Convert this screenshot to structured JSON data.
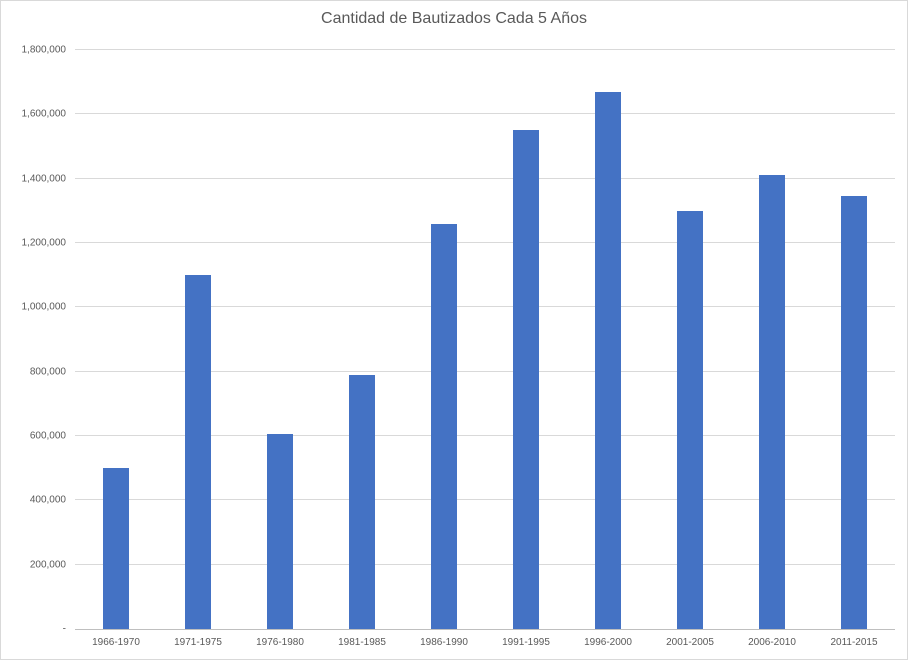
{
  "chart_data": {
    "type": "bar",
    "title": "Cantidad de Bautizados Cada 5 Años",
    "categories": [
      "1966-1970",
      "1971-1975",
      "1976-1980",
      "1981-1985",
      "1986-1990",
      "1991-1995",
      "1996-2000",
      "2001-2005",
      "2006-2010",
      "2011-2015"
    ],
    "values": [
      500000,
      1100000,
      605000,
      790000,
      1260000,
      1550000,
      1670000,
      1300000,
      1410000,
      1345000
    ],
    "xlabel": "",
    "ylabel": "",
    "ylim": [
      0,
      1800000
    ],
    "ytick_step": 200000,
    "ytick_labels": [
      "-",
      "200,000",
      "400,000",
      "600,000",
      "800,000",
      "1,000,000",
      "1,200,000",
      "1,400,000",
      "1,600,000",
      "1,800,000"
    ],
    "grid": true,
    "legend": false,
    "colors": {
      "bar": "#4472C4",
      "gridline": "#D9D9D9",
      "axis_line": "#BFBFBF",
      "text": "#595959",
      "border": "#D9D9D9",
      "background": "#FFFFFF"
    }
  }
}
